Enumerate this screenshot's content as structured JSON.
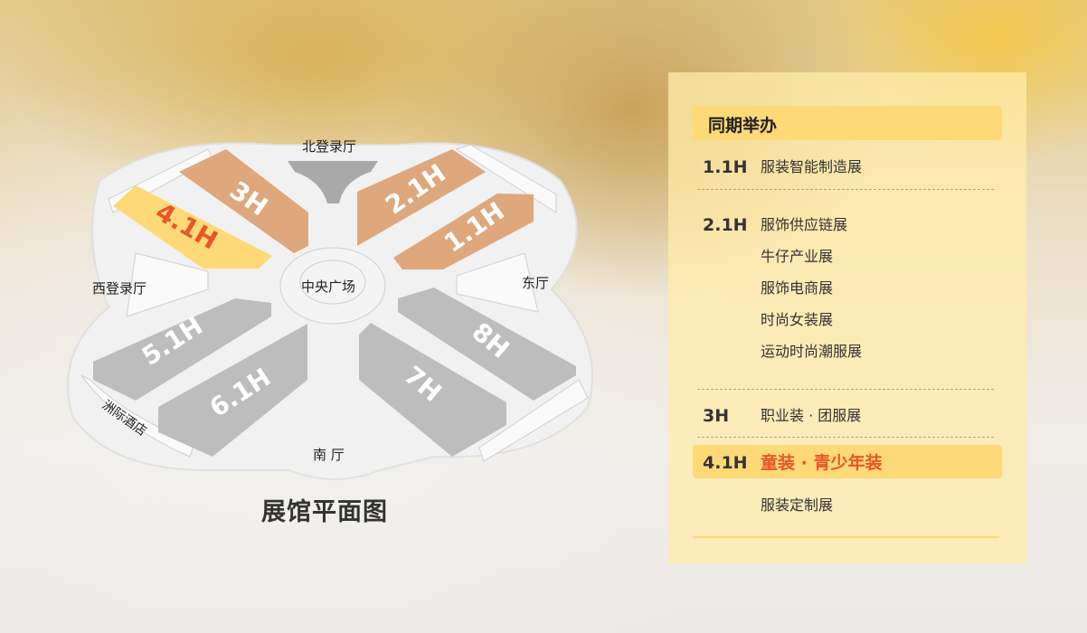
{
  "floorplan": {
    "title": "展馆平面图",
    "areas": {
      "north": "北登录厅",
      "west": "西登录厅",
      "east": "东厅",
      "south": "南 厅",
      "center": "中央广场",
      "hotel": "洲际酒店"
    },
    "halls": [
      {
        "id": "3H",
        "status": "concurrent"
      },
      {
        "id": "4.1H",
        "status": "current"
      },
      {
        "id": "2.1H",
        "status": "concurrent"
      },
      {
        "id": "1.1H",
        "status": "concurrent"
      },
      {
        "id": "5.1H",
        "status": "other"
      },
      {
        "id": "6.1H",
        "status": "other"
      },
      {
        "id": "7H",
        "status": "other"
      },
      {
        "id": "8H",
        "status": "other"
      }
    ],
    "colors": {
      "current": "#fed978",
      "current_text": "#e8562a",
      "concurrent": "#dfa77c",
      "other": "#bdbdbd"
    }
  },
  "panel": {
    "title": "同期举办",
    "rows": [
      {
        "hall": "1.1H",
        "items": [
          "服装智能制造展"
        ]
      },
      {
        "hall": "2.1H",
        "items": [
          "服饰供应链展",
          "牛仔产业展",
          "服饰电商展",
          "时尚女装展",
          "运动时尚潮服展"
        ]
      },
      {
        "hall": "3H",
        "items": [
          "职业装 · 团服展"
        ]
      },
      {
        "hall": "4.1H",
        "items": [
          "童装 · 青少年装"
        ],
        "highlighted": true
      },
      {
        "hall": "",
        "items": [
          "服装定制展"
        ]
      }
    ]
  }
}
